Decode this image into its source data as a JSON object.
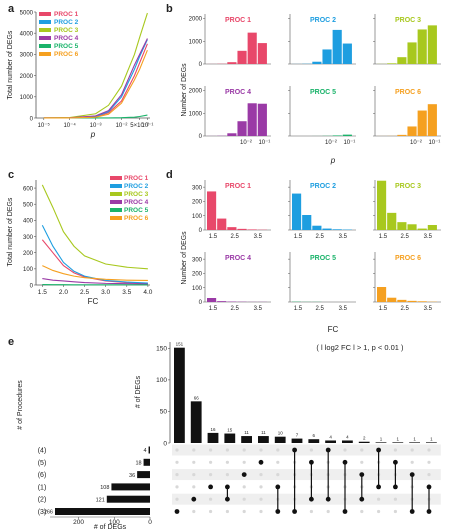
{
  "colors": {
    "PROC 1": "#e8486a",
    "PROC 2": "#1e9ee0",
    "PROC 3": "#a8c81e",
    "PROC 4": "#9a3aa6",
    "PROC 5": "#1ab36a",
    "PROC 6": "#f5a020"
  },
  "panel_letters": {
    "a": "a",
    "b": "b",
    "c": "c",
    "d": "d",
    "e": "e"
  },
  "legend": [
    "PROC 1",
    "PROC 2",
    "PROC 3",
    "PROC 4",
    "PROC 5",
    "PROC 6"
  ],
  "chart_data": [
    {
      "panel": "a",
      "type": "line",
      "xlabel": "p",
      "ylabel": "Total number of DEGs",
      "x_scale": "log",
      "x_ticks": [
        "10⁻⁵",
        "10⁻⁴",
        "10⁻³",
        "10⁻²",
        "5×10⁻²",
        "10⁻¹"
      ],
      "y_ticks": [
        0,
        1000,
        2000,
        3000,
        4000,
        5000
      ],
      "ylim": [
        0,
        5000
      ],
      "x": [
        -5,
        -4,
        -3,
        -2.5,
        -2,
        -1.5,
        -1.3,
        -1
      ],
      "series": [
        {
          "name": "PROC 1",
          "values": [
            3,
            8,
            60,
            250,
            800,
            2000,
            2600,
            3500
          ]
        },
        {
          "name": "PROC 2",
          "values": [
            3,
            8,
            80,
            300,
            1000,
            2300,
            2900,
            3700
          ]
        },
        {
          "name": "PROC 3",
          "values": [
            5,
            20,
            200,
            600,
            1500,
            3000,
            3800,
            4950
          ]
        },
        {
          "name": "PROC 4",
          "values": [
            3,
            10,
            100,
            350,
            1100,
            2500,
            3000,
            3750
          ]
        },
        {
          "name": "PROC 5",
          "values": [
            0,
            0,
            2,
            5,
            15,
            40,
            70,
            140
          ]
        },
        {
          "name": "PROC 6",
          "values": [
            2,
            5,
            40,
            180,
            700,
            1800,
            2300,
            3200
          ]
        }
      ]
    },
    {
      "panel": "b",
      "type": "bar",
      "ylabel": "Number of DEGs",
      "xlabel": "p",
      "x_ticks": [
        "10⁻²",
        "10⁻¹"
      ],
      "y_ticks": [
        0,
        1000,
        2000
      ],
      "ylim": [
        0,
        2200
      ],
      "bins": [
        "10⁻⁵",
        "10⁻⁴",
        "10⁻³",
        "10⁻²",
        "10⁻¹.⁵",
        "10⁻¹"
      ],
      "series": [
        {
          "name": "PROC 1",
          "values": [
            3,
            10,
            80,
            580,
            1380,
            920
          ]
        },
        {
          "name": "PROC 2",
          "values": [
            3,
            10,
            100,
            640,
            1500,
            900
          ]
        },
        {
          "name": "PROC 3",
          "values": [
            5,
            30,
            300,
            950,
            1520,
            1700
          ]
        },
        {
          "name": "PROC 4",
          "values": [
            3,
            10,
            120,
            650,
            1440,
            1420
          ]
        },
        {
          "name": "PROC 5",
          "values": [
            0,
            0,
            2,
            8,
            25,
            60
          ]
        },
        {
          "name": "PROC 6",
          "values": [
            2,
            5,
            50,
            420,
            1120,
            1400
          ]
        }
      ]
    },
    {
      "panel": "c",
      "type": "line",
      "xlabel": "FC",
      "ylabel": "Total number of DEGs",
      "x_ticks": [
        "1.5",
        "2.0",
        "2.5",
        "3.0",
        "3.5",
        "4.0"
      ],
      "y_ticks": [
        0,
        100,
        200,
        300,
        400,
        500,
        600
      ],
      "xlim": [
        1.35,
        4.05
      ],
      "ylim": [
        0,
        650
      ],
      "x": [
        1.5,
        1.75,
        2.0,
        2.25,
        2.5,
        3.0,
        3.5,
        4.0
      ],
      "series": [
        {
          "name": "PROC 1",
          "values": [
            280,
            200,
            120,
            75,
            50,
            25,
            15,
            10
          ]
        },
        {
          "name": "PROC 2",
          "values": [
            370,
            240,
            140,
            85,
            55,
            28,
            18,
            12
          ]
        },
        {
          "name": "PROC 3",
          "values": [
            620,
            480,
            330,
            240,
            180,
            130,
            110,
            100
          ]
        },
        {
          "name": "PROC 4",
          "values": [
            40,
            30,
            25,
            20,
            15,
            10,
            8,
            6
          ]
        },
        {
          "name": "PROC 5",
          "values": [
            3,
            2,
            2,
            1,
            1,
            1,
            1,
            1
          ]
        },
        {
          "name": "PROC 6",
          "values": [
            120,
            90,
            70,
            55,
            45,
            35,
            30,
            28
          ]
        }
      ]
    },
    {
      "panel": "d",
      "type": "bar",
      "ylabel": "Number of DEGs",
      "xlabel": "FC",
      "x_ticks": [
        "1.5",
        "2.5",
        "3.5"
      ],
      "y_ticks": [
        0,
        100,
        200,
        300
      ],
      "ylim": [
        0,
        350
      ],
      "bins": [
        1.5,
        2.0,
        2.5,
        3.0,
        3.5,
        4.0
      ],
      "series": [
        {
          "name": "PROC 1",
          "values": [
            270,
            80,
            20,
            8,
            4,
            2
          ]
        },
        {
          "name": "PROC 2",
          "values": [
            255,
            105,
            30,
            10,
            5,
            3
          ]
        },
        {
          "name": "PROC 3",
          "values": [
            345,
            120,
            55,
            40,
            10,
            35
          ]
        },
        {
          "name": "PROC 4",
          "values": [
            28,
            6,
            3,
            2,
            1,
            1
          ]
        },
        {
          "name": "PROC 5",
          "values": [
            2,
            1,
            1,
            0,
            0,
            0
          ]
        },
        {
          "name": "PROC 6",
          "values": [
            105,
            30,
            15,
            8,
            5,
            2
          ]
        }
      ]
    },
    {
      "panel": "e",
      "type": "bar",
      "annotation": "( l log2 FC l > 1, p < 0.01 )",
      "ylabel": "# of DEGs",
      "y_ticks": [
        0,
        50,
        100,
        150
      ],
      "ylim": [
        0,
        160
      ],
      "values": [
        151,
        66,
        16,
        15,
        11,
        11,
        10,
        7,
        6,
        4,
        4,
        2,
        1,
        1,
        1,
        1
      ],
      "data_labels": [
        "151",
        "66",
        "16",
        "15",
        "11",
        "11",
        "10",
        "7",
        "6",
        "4",
        "4",
        "2",
        "1",
        "1",
        "1",
        "1"
      ],
      "sets": [
        "(4)",
        "(5)",
        "(6)",
        "(1)",
        "(2)",
        "(3)"
      ],
      "set_sizes": [
        4,
        18,
        36,
        108,
        121,
        266
      ],
      "set_size_labels": [
        "4",
        "18",
        "36",
        "108",
        "121",
        "266"
      ],
      "set_axis_label": "# of Procedures",
      "set_size_axis_label": "# of DEGs",
      "set_size_ticks": [
        "200",
        "100",
        "0"
      ],
      "set_size_tick_values": [
        200,
        100,
        0
      ],
      "set_size_max": 280,
      "combinations": [
        [
          5
        ],
        [
          4
        ],
        [
          3
        ],
        [
          3,
          4
        ],
        [
          2
        ],
        [
          1
        ],
        [
          3,
          5
        ],
        [
          0,
          5
        ],
        [
          1,
          4
        ],
        [
          0,
          4
        ],
        [
          1,
          5
        ],
        [
          2,
          4
        ],
        [
          0,
          3
        ],
        [
          1,
          3
        ],
        [
          2,
          5
        ],
        [
          3,
          5
        ]
      ]
    }
  ]
}
